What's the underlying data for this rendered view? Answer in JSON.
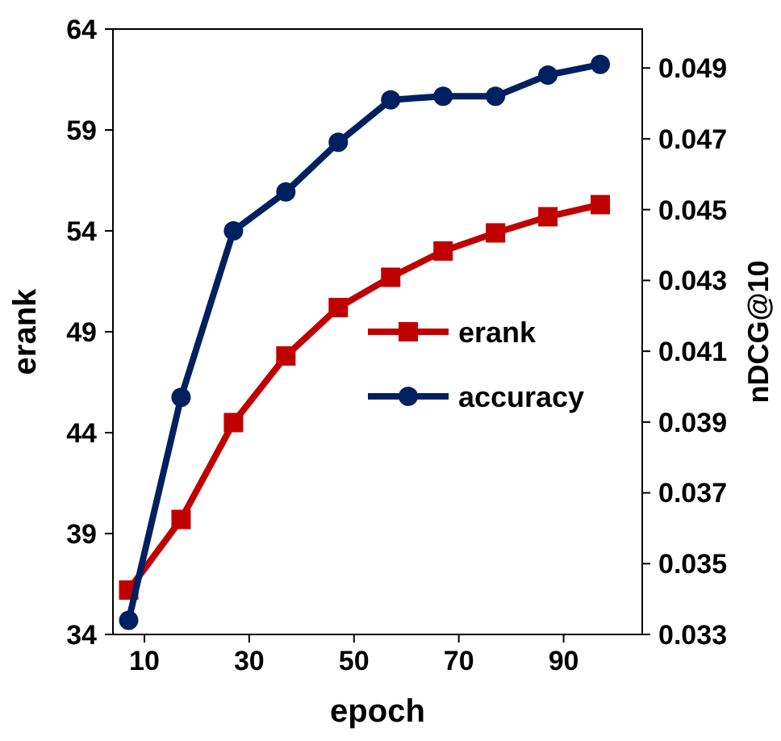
{
  "chart_data": {
    "type": "line",
    "xlabel": "epoch",
    "ylabel": "erank",
    "y2label": "nDCG@10",
    "x": [
      7,
      17,
      27,
      37,
      47,
      57,
      67,
      77,
      87,
      97
    ],
    "series": [
      {
        "name": "erank",
        "color": "#c00000",
        "marker": "square",
        "values": [
          36.2,
          39.7,
          44.5,
          47.8,
          50.2,
          51.7,
          53.0,
          53.9,
          54.7,
          55.3
        ]
      },
      {
        "name": "accuracy",
        "color": "#002060",
        "marker": "circle",
        "axis": "y2",
        "values": [
          0.0334,
          0.0397,
          0.0444,
          0.0455,
          0.0469,
          0.0481,
          0.0482,
          0.0482,
          0.0488,
          0.0491
        ]
      }
    ],
    "xlim": [
      4,
      105
    ],
    "xticks": [
      10,
      30,
      50,
      70,
      90
    ],
    "ylim": [
      34,
      64
    ],
    "yticks": [
      34,
      39,
      44,
      49,
      54,
      59,
      64
    ],
    "y2lim": [
      0.033,
      0.0501
    ],
    "y2ticks": [
      0.033,
      0.035,
      0.037,
      0.039,
      0.041,
      0.043,
      0.045,
      0.047,
      0.049
    ],
    "legend": "right",
    "grid": false
  }
}
